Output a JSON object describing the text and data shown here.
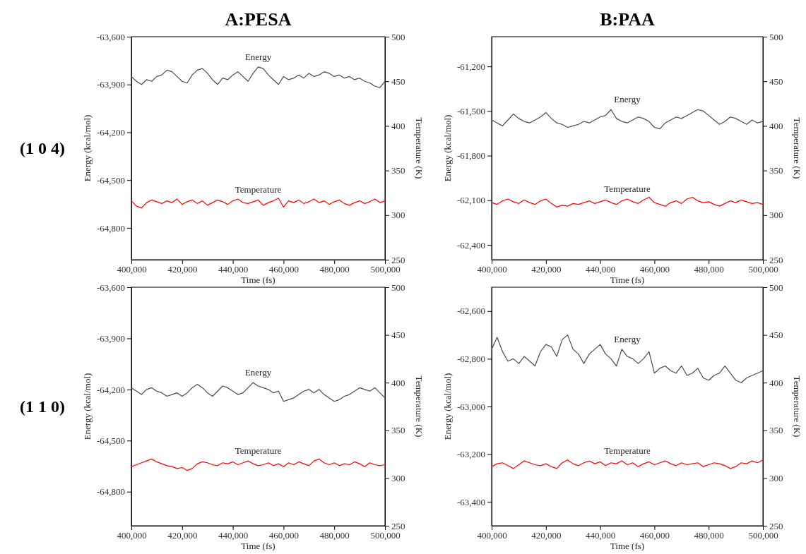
{
  "chart_data": [
    {
      "type": "line",
      "title": "A:PESA",
      "annotations": [
        "(1 0 4)"
      ],
      "xlabel": "Time (fs)",
      "ylabel": "Energy (kcal/mol)",
      "y2label": "Temperature (K)",
      "x": [
        400000,
        402000,
        404000,
        406000,
        408000,
        410000,
        412000,
        414000,
        416000,
        418000,
        420000,
        422000,
        424000,
        426000,
        428000,
        430000,
        432000,
        434000,
        436000,
        438000,
        440000,
        442000,
        444000,
        446000,
        448000,
        450000,
        452000,
        454000,
        456000,
        458000,
        460000,
        462000,
        464000,
        466000,
        468000,
        470000,
        472000,
        474000,
        476000,
        478000,
        480000,
        482000,
        484000,
        486000,
        488000,
        490000,
        492000,
        494000,
        496000,
        498000,
        500000
      ],
      "xlim": [
        400000,
        500000
      ],
      "xticks": [
        {
          "value": 400000,
          "label": "400,000"
        },
        {
          "value": 420000,
          "label": "420,000"
        },
        {
          "value": 440000,
          "label": "440,000"
        },
        {
          "value": 460000,
          "label": "460,000"
        },
        {
          "value": 480000,
          "label": "480,000"
        },
        {
          "value": 500000,
          "label": "500,000"
        }
      ],
      "ylim": [
        -65000,
        -63600
      ],
      "yticks": [
        {
          "value": -64800,
          "label": "-64,800"
        },
        {
          "value": -64500,
          "label": "-64,500"
        },
        {
          "value": -64200,
          "label": "-64,200"
        },
        {
          "value": -63900,
          "label": "-63,900"
        },
        {
          "value": -63600,
          "label": "-63,600"
        }
      ],
      "y2lim": [
        250,
        500
      ],
      "y2ticks": [
        250,
        300,
        350,
        400,
        450,
        500
      ],
      "grid": false,
      "legend": false,
      "series": [
        {
          "name": "Energy",
          "color": "#4a4a4a",
          "values": [
            -63850,
            -63880,
            -63900,
            -63870,
            -63880,
            -63850,
            -63840,
            -63810,
            -63820,
            -63850,
            -63880,
            -63890,
            -63840,
            -63810,
            -63800,
            -63830,
            -63870,
            -63900,
            -63860,
            -63870,
            -63840,
            -63820,
            -63850,
            -63880,
            -63830,
            -63790,
            -63800,
            -63840,
            -63870,
            -63900,
            -63850,
            -63870,
            -63860,
            -63840,
            -63860,
            -63830,
            -63850,
            -63840,
            -63820,
            -63830,
            -63850,
            -63840,
            -63860,
            -63850,
            -63870,
            -63860,
            -63880,
            -63890,
            -63910,
            -63920,
            -63880
          ]
        },
        {
          "name": "Temperature",
          "color": "#ff0000",
          "axis": "y2",
          "values": [
            316,
            310,
            308,
            314,
            317,
            315,
            313,
            316,
            314,
            318,
            312,
            315,
            317,
            313,
            316,
            311,
            314,
            317,
            315,
            312,
            316,
            318,
            314,
            313,
            315,
            317,
            311,
            314,
            316,
            319,
            309,
            316,
            314,
            317,
            313,
            315,
            318,
            314,
            316,
            312,
            315,
            317,
            313,
            311,
            314,
            316,
            313,
            315,
            318,
            314,
            316
          ]
        }
      ]
    },
    {
      "type": "line",
      "title": "B:PAA",
      "xlabel": "Time (fs)",
      "ylabel": "Energy (kcal/mol)",
      "y2label": "Temperature (K)",
      "x": [
        400000,
        402000,
        404000,
        406000,
        408000,
        410000,
        412000,
        414000,
        416000,
        418000,
        420000,
        422000,
        424000,
        426000,
        428000,
        430000,
        432000,
        434000,
        436000,
        438000,
        440000,
        442000,
        444000,
        446000,
        448000,
        450000,
        452000,
        454000,
        456000,
        458000,
        460000,
        462000,
        464000,
        466000,
        468000,
        470000,
        472000,
        474000,
        476000,
        478000,
        480000,
        482000,
        484000,
        486000,
        488000,
        490000,
        492000,
        494000,
        496000,
        498000,
        500000
      ],
      "xlim": [
        400000,
        500000
      ],
      "xticks": [
        {
          "value": 400000,
          "label": "400,000"
        },
        {
          "value": 420000,
          "label": "420,000"
        },
        {
          "value": 440000,
          "label": "440,000"
        },
        {
          "value": 460000,
          "label": "460,000"
        },
        {
          "value": 480000,
          "label": "480,000"
        },
        {
          "value": 500000,
          "label": "500,000"
        }
      ],
      "ylim": [
        -62500,
        -61000
      ],
      "yticks": [
        {
          "value": -62400,
          "label": "-62,400"
        },
        {
          "value": -62100,
          "label": "-62,100"
        },
        {
          "value": -61800,
          "label": "-61,800"
        },
        {
          "value": -61500,
          "label": "-61,500"
        },
        {
          "value": -61200,
          "label": "-61,200"
        }
      ],
      "y2lim": [
        250,
        500
      ],
      "y2ticks": [
        250,
        300,
        350,
        400,
        450,
        500
      ],
      "grid": false,
      "legend": false,
      "series": [
        {
          "name": "Energy",
          "color": "#4a4a4a",
          "values": [
            -61560,
            -61580,
            -61600,
            -61560,
            -61520,
            -61550,
            -61570,
            -61580,
            -61560,
            -61540,
            -61510,
            -61550,
            -61580,
            -61590,
            -61610,
            -61600,
            -61590,
            -61570,
            -61580,
            -61560,
            -61540,
            -61530,
            -61490,
            -61550,
            -61570,
            -61580,
            -61560,
            -61540,
            -61550,
            -61570,
            -61610,
            -61620,
            -61580,
            -61560,
            -61540,
            -61550,
            -61530,
            -61510,
            -61490,
            -61500,
            -61530,
            -61560,
            -61590,
            -61570,
            -61540,
            -61550,
            -61570,
            -61590,
            -61560,
            -61580,
            -61570
          ]
        },
        {
          "name": "Temperature",
          "color": "#ff0000",
          "axis": "y2",
          "values": [
            314,
            312,
            316,
            318,
            315,
            313,
            317,
            314,
            312,
            316,
            318,
            313,
            309,
            311,
            310,
            313,
            312,
            314,
            316,
            313,
            315,
            317,
            314,
            312,
            316,
            318,
            315,
            313,
            317,
            320,
            314,
            312,
            310,
            314,
            316,
            313,
            318,
            320,
            316,
            314,
            315,
            312,
            310,
            313,
            316,
            314,
            317,
            315,
            313,
            314,
            312
          ]
        }
      ]
    },
    {
      "type": "line",
      "annotations": [
        "(1 1 0)"
      ],
      "xlabel": "Time (fs)",
      "ylabel": "Energy (kcal/mol)",
      "y2label": "Temperature (K)",
      "x": [
        400000,
        402000,
        404000,
        406000,
        408000,
        410000,
        412000,
        414000,
        416000,
        418000,
        420000,
        422000,
        424000,
        426000,
        428000,
        430000,
        432000,
        434000,
        436000,
        438000,
        440000,
        442000,
        444000,
        446000,
        448000,
        450000,
        452000,
        454000,
        456000,
        458000,
        460000,
        462000,
        464000,
        466000,
        468000,
        470000,
        472000,
        474000,
        476000,
        478000,
        480000,
        482000,
        484000,
        486000,
        488000,
        490000,
        492000,
        494000,
        496000,
        498000,
        500000
      ],
      "xlim": [
        400000,
        500000
      ],
      "xticks": [
        {
          "value": 400000,
          "label": "400,000"
        },
        {
          "value": 420000,
          "label": "420,000"
        },
        {
          "value": 440000,
          "label": "440,000"
        },
        {
          "value": 460000,
          "label": "460,000"
        },
        {
          "value": 480000,
          "label": "480,000"
        },
        {
          "value": 500000,
          "label": "500,000"
        }
      ],
      "ylim": [
        -65000,
        -63600
      ],
      "yticks": [
        {
          "value": -64800,
          "label": "-64,800"
        },
        {
          "value": -64500,
          "label": "-64,500"
        },
        {
          "value": -64200,
          "label": "-64,200"
        },
        {
          "value": -63900,
          "label": "-63,900"
        },
        {
          "value": -63600,
          "label": "-63,600"
        }
      ],
      "y2lim": [
        250,
        500
      ],
      "y2ticks": [
        250,
        300,
        350,
        400,
        450,
        500
      ],
      "grid": false,
      "legend": false,
      "series": [
        {
          "name": "Energy",
          "color": "#4a4a4a",
          "values": [
            -64190,
            -64210,
            -64230,
            -64200,
            -64190,
            -64210,
            -64220,
            -64240,
            -64230,
            -64220,
            -64240,
            -64220,
            -64190,
            -64170,
            -64190,
            -64220,
            -64240,
            -64210,
            -64180,
            -64190,
            -64210,
            -64230,
            -64220,
            -64190,
            -64160,
            -64180,
            -64190,
            -64200,
            -64220,
            -64210,
            -64270,
            -64260,
            -64250,
            -64230,
            -64210,
            -64200,
            -64220,
            -64200,
            -64230,
            -64250,
            -64270,
            -64260,
            -64240,
            -64230,
            -64210,
            -64190,
            -64200,
            -64210,
            -64190,
            -64220,
            -64250
          ]
        },
        {
          "name": "Temperature",
          "color": "#ff0000",
          "axis": "y2",
          "values": [
            312,
            314,
            316,
            318,
            320,
            317,
            315,
            313,
            312,
            310,
            311,
            308,
            310,
            315,
            317,
            316,
            314,
            313,
            316,
            315,
            317,
            314,
            316,
            318,
            315,
            313,
            314,
            316,
            313,
            315,
            312,
            316,
            314,
            317,
            315,
            313,
            318,
            320,
            316,
            314,
            316,
            313,
            315,
            314,
            317,
            315,
            312,
            316,
            314,
            313,
            314
          ]
        }
      ]
    },
    {
      "type": "line",
      "xlabel": "Time (fs)",
      "ylabel": "Energy (kcal/mol)",
      "y2label": "Temperature (K)",
      "x": [
        400000,
        402000,
        404000,
        406000,
        408000,
        410000,
        412000,
        414000,
        416000,
        418000,
        420000,
        422000,
        424000,
        426000,
        428000,
        430000,
        432000,
        434000,
        436000,
        438000,
        440000,
        442000,
        444000,
        446000,
        448000,
        450000,
        452000,
        454000,
        456000,
        458000,
        460000,
        462000,
        464000,
        466000,
        468000,
        470000,
        472000,
        474000,
        476000,
        478000,
        480000,
        482000,
        484000,
        486000,
        488000,
        490000,
        492000,
        494000,
        496000,
        498000,
        500000
      ],
      "xlim": [
        400000,
        500000
      ],
      "xticks": [
        {
          "value": 400000,
          "label": "400,000"
        },
        {
          "value": 420000,
          "label": "420,000"
        },
        {
          "value": 440000,
          "label": "440,000"
        },
        {
          "value": 460000,
          "label": "460,000"
        },
        {
          "value": 480000,
          "label": "480,000"
        },
        {
          "value": 500000,
          "label": "500,000"
        }
      ],
      "ylim": [
        -63500,
        -62500
      ],
      "yticks": [
        {
          "value": -63400,
          "label": "-63,400"
        },
        {
          "value": -63200,
          "label": "-63,200"
        },
        {
          "value": -63000,
          "label": "-63,000"
        },
        {
          "value": -62800,
          "label": "-62,800"
        },
        {
          "value": -62600,
          "label": "-62,600"
        }
      ],
      "y2lim": [
        250,
        500
      ],
      "y2ticks": [
        250,
        300,
        350,
        400,
        450,
        500
      ],
      "grid": false,
      "legend": false,
      "series": [
        {
          "name": "Energy",
          "color": "#4a4a4a",
          "values": [
            -62760,
            -62710,
            -62770,
            -62810,
            -62800,
            -62820,
            -62790,
            -62810,
            -62830,
            -62770,
            -62740,
            -62750,
            -62790,
            -62720,
            -62700,
            -62760,
            -62780,
            -62820,
            -62780,
            -62760,
            -62740,
            -62780,
            -62800,
            -62830,
            -62760,
            -62790,
            -62800,
            -62820,
            -62800,
            -62770,
            -62860,
            -62840,
            -62830,
            -62850,
            -62860,
            -62830,
            -62870,
            -62860,
            -62840,
            -62880,
            -62890,
            -62870,
            -62860,
            -62830,
            -62860,
            -62890,
            -62900,
            -62880,
            -62870,
            -62860,
            -62850
          ]
        },
        {
          "name": "Temperature",
          "color": "#ff0000",
          "axis": "y2",
          "values": [
            312,
            315,
            316,
            313,
            310,
            314,
            318,
            316,
            314,
            313,
            315,
            312,
            310,
            316,
            319,
            315,
            313,
            316,
            318,
            315,
            317,
            313,
            316,
            315,
            318,
            314,
            316,
            312,
            315,
            317,
            314,
            316,
            318,
            315,
            313,
            316,
            314,
            315,
            316,
            312,
            314,
            316,
            315,
            313,
            310,
            312,
            316,
            315,
            318,
            316,
            319
          ]
        }
      ]
    }
  ]
}
